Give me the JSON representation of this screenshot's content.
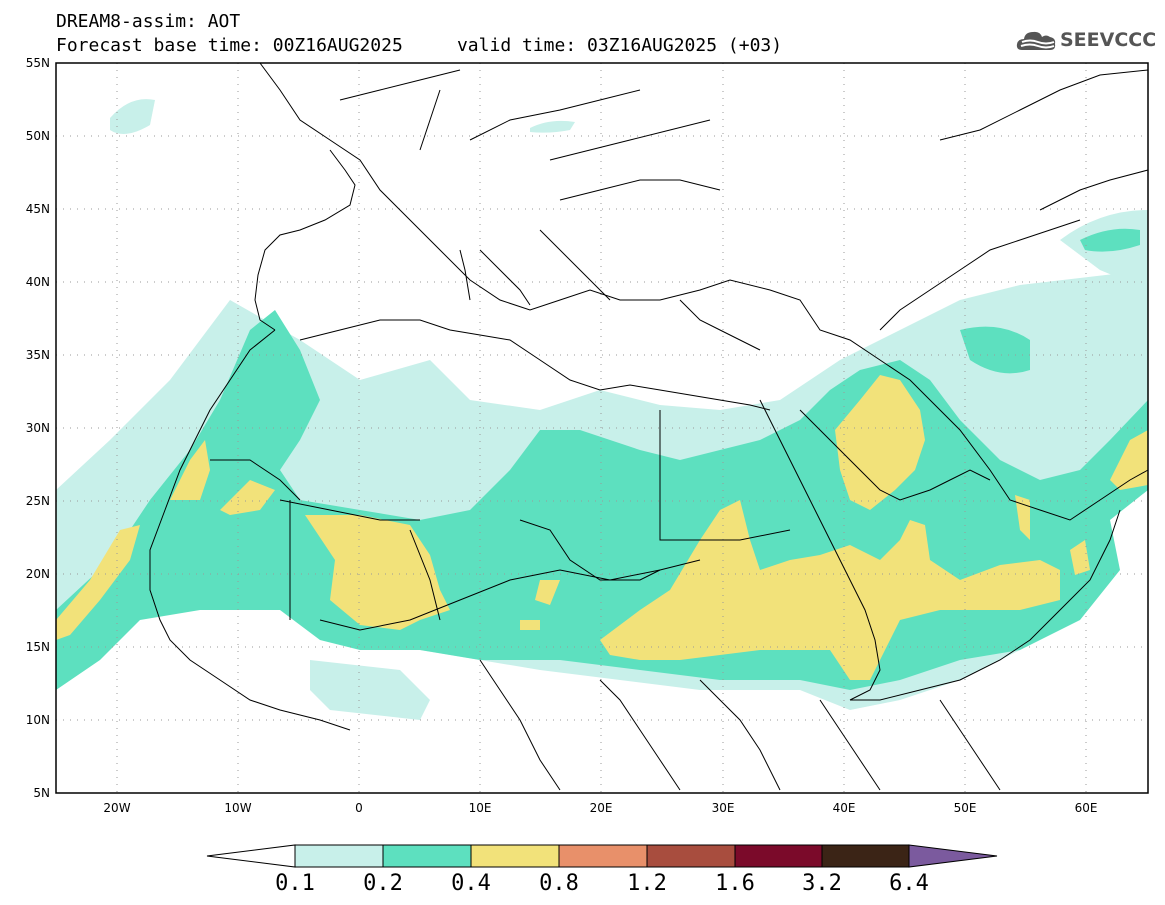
{
  "header": {
    "product": "DREAM8-assim: AOT",
    "line2": "Forecast base time: 00Z16AUG2025     valid time: 03Z16AUG2025 (+03)",
    "logo_text": "SEEVCCC"
  },
  "map": {
    "lon_range": [
      -25,
      65
    ],
    "lat_range": [
      5,
      55
    ],
    "lon_ticks": [
      "20W",
      "10W",
      "0",
      "10E",
      "20E",
      "30E",
      "40E",
      "50E",
      "60E"
    ],
    "lat_ticks": [
      "55N",
      "50N",
      "45N",
      "40N",
      "35N",
      "30N",
      "25N",
      "20N",
      "15N",
      "10N",
      "5N"
    ]
  },
  "colorbar": {
    "levels": [
      "0.1",
      "0.2",
      "0.4",
      "0.8",
      "1.2",
      "1.6",
      "3.2",
      "6.4"
    ],
    "colors": [
      "#ffffff",
      "#c8f0ea",
      "#5de0bf",
      "#f2e27a",
      "#e8906a",
      "#a84d3e",
      "#7b0a2a",
      "#3b2416",
      "#7b5a9e"
    ]
  },
  "colors": {
    "level1": "#c8f0ea",
    "level2": "#5de0bf",
    "level3": "#f2e27a",
    "border": "#000000",
    "grid": "#9a9a9a"
  },
  "icons": {
    "logo": "cloud-logo-icon"
  }
}
